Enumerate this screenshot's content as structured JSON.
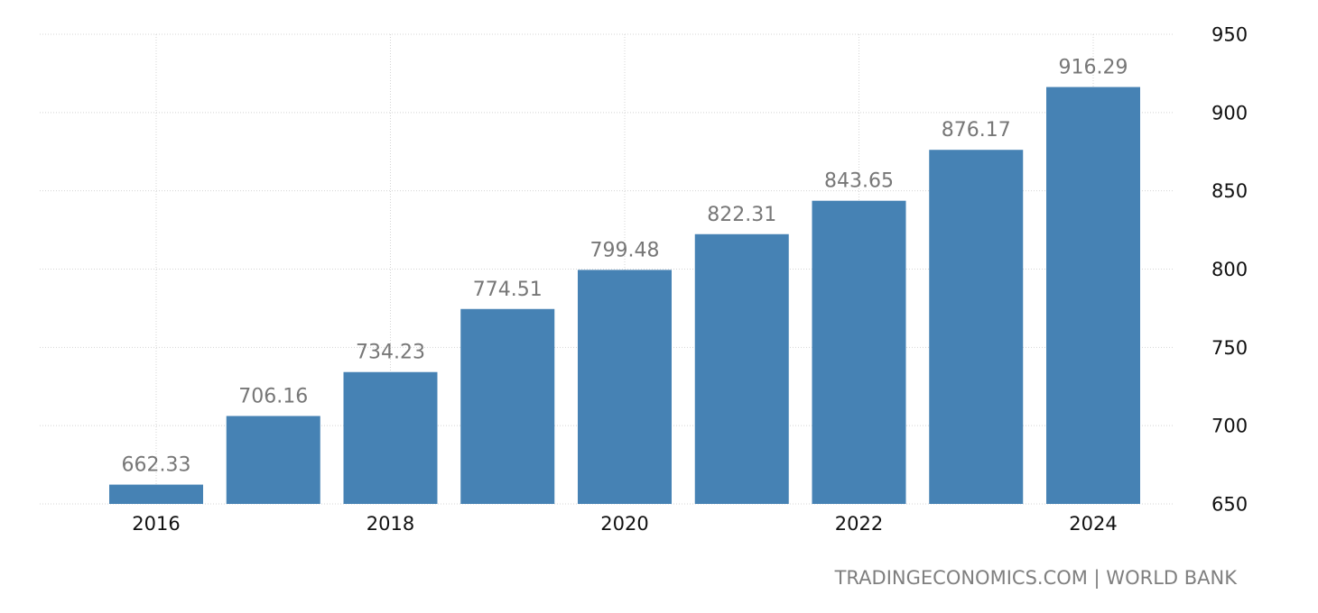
{
  "chart_data": {
    "type": "bar",
    "categories": [
      "2016",
      "2017",
      "2018",
      "2019",
      "2020",
      "2021",
      "2022",
      "2023",
      "2024"
    ],
    "values": [
      662.33,
      706.16,
      734.23,
      774.51,
      799.48,
      822.31,
      843.65,
      876.17,
      916.29
    ],
    "value_labels": [
      "662.33",
      "706.16",
      "734.23",
      "774.51",
      "799.48",
      "822.31",
      "843.65",
      "876.17",
      "916.29"
    ],
    "x_tick_labels": [
      "2016",
      "2018",
      "2020",
      "2022",
      "2024"
    ],
    "y_ticks": [
      650,
      700,
      750,
      800,
      850,
      900,
      950
    ],
    "ylim": [
      650,
      950
    ],
    "y_axis_side": "right",
    "grid": true,
    "legend": "none",
    "bar_color": "#4682b4",
    "label_color": "#777777",
    "title": "",
    "xlabel": "",
    "ylabel": ""
  },
  "footer": {
    "source": "TRADINGECONOMICS.COM | WORLD BANK"
  }
}
